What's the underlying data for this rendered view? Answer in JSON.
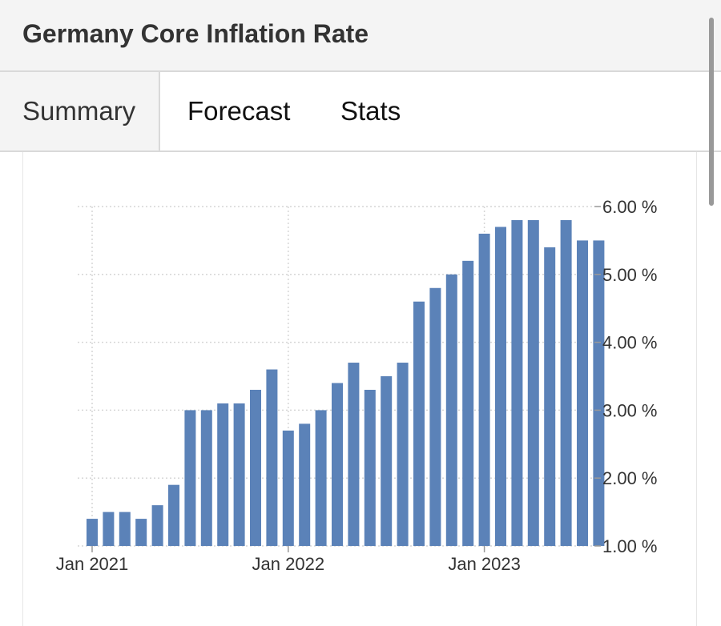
{
  "header": {
    "title": "Germany Core Inflation Rate"
  },
  "tabs": [
    {
      "label": "Summary",
      "active": true
    },
    {
      "label": "Forecast",
      "active": false
    },
    {
      "label": "Stats",
      "active": false
    }
  ],
  "colors": {
    "bar": "#5b82b8",
    "grid": "#d6d6d6",
    "header_bg": "#f4f4f4"
  },
  "chart_data": {
    "type": "bar",
    "title": "Germany Core Inflation Rate",
    "xlabel": "",
    "ylabel": "",
    "categories": [
      "2021-01",
      "2021-02",
      "2021-03",
      "2021-04",
      "2021-05",
      "2021-06",
      "2021-07",
      "2021-08",
      "2021-09",
      "2021-10",
      "2021-11",
      "2021-12",
      "2022-01",
      "2022-02",
      "2022-03",
      "2022-04",
      "2022-05",
      "2022-06",
      "2022-07",
      "2022-08",
      "2022-09",
      "2022-10",
      "2022-11",
      "2022-12",
      "2023-01",
      "2023-02",
      "2023-03",
      "2023-04",
      "2023-05",
      "2023-06",
      "2023-07",
      "2023-08"
    ],
    "values": [
      1.4,
      1.5,
      1.5,
      1.4,
      1.6,
      1.9,
      3.0,
      3.0,
      3.1,
      3.1,
      3.3,
      3.6,
      2.7,
      2.8,
      3.0,
      3.4,
      3.7,
      3.3,
      3.5,
      3.7,
      4.6,
      4.8,
      5.0,
      5.2,
      5.6,
      5.7,
      5.8,
      5.8,
      5.4,
      5.8,
      5.5,
      5.5
    ],
    "ylim": [
      1.0,
      6.0
    ],
    "y_ticks": [
      1,
      2,
      3,
      4,
      5,
      6
    ],
    "y_tick_labels": [
      "1.00 %",
      "2.00 %",
      "3.00 %",
      "4.00 %",
      "5.00 %",
      "6.00 %"
    ],
    "x_tick_labels": [
      {
        "label": "Jan 2021",
        "category": "2021-01"
      },
      {
        "label": "Jan 2022",
        "category": "2022-01"
      },
      {
        "label": "Jan 2023",
        "category": "2023-01"
      }
    ],
    "grid": true,
    "legend": false
  }
}
